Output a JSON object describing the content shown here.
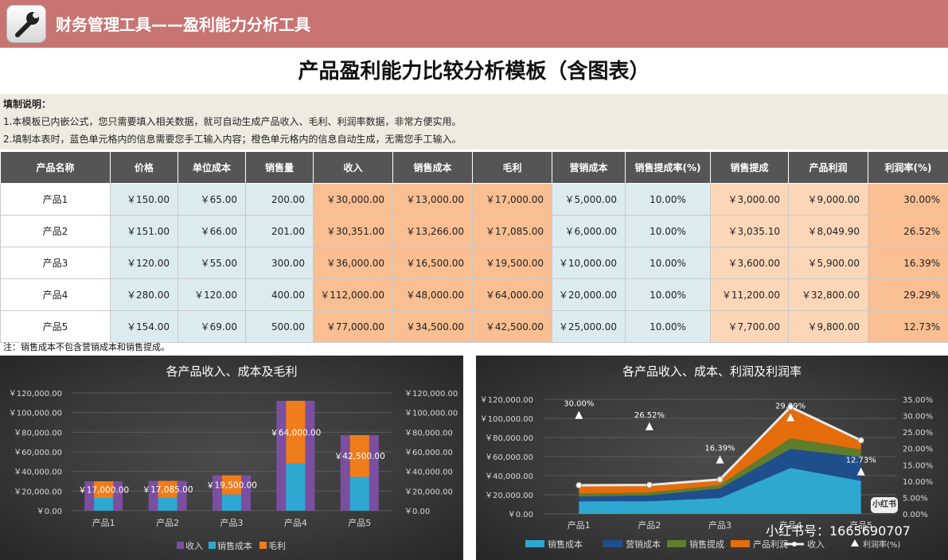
{
  "app": {
    "title": "财务管理工具——盈利能力分析工具",
    "icon": "wrench-icon"
  },
  "page_title": "产品盈利能力比较分析模板（含图表）",
  "notes": {
    "title": "填制说明：",
    "line1": "1.本模板已内嵌公式，您只需要填入相关数据，就可自动生成产品收入、毛利、利润率数据，非常方便实用。",
    "line2": "2.填制本表时，蓝色单元格内的信息需要您手工输入内容；橙色单元格内的信息自动生成，无需您手工输入。"
  },
  "table": {
    "headers": [
      "产品名称",
      "价格",
      "单位成本",
      "销售量",
      "收入",
      "销售成本",
      "毛利",
      "营销成本",
      "销售提成率(%)",
      "销售提成",
      "产品利润",
      "利润率(%)"
    ],
    "rows": [
      [
        "产品1",
        "￥150.00",
        "￥65.00",
        "200.00",
        "￥30,000.00",
        "￥13,000.00",
        "￥17,000.00",
        "￥5,000.00",
        "10.00%",
        "￥3,000.00",
        "￥9,000.00",
        "30.00%"
      ],
      [
        "产品2",
        "￥151.00",
        "￥66.00",
        "201.00",
        "￥30,351.00",
        "￥13,266.00",
        "￥17,085.00",
        "￥6,000.00",
        "10.00%",
        "￥3,035.10",
        "￥8,049.90",
        "26.52%"
      ],
      [
        "产品3",
        "￥120.00",
        "￥55.00",
        "300.00",
        "￥36,000.00",
        "￥16,500.00",
        "￥19,500.00",
        "￥10,000.00",
        "10.00%",
        "￥3,600.00",
        "￥5,900.00",
        "16.39%"
      ],
      [
        "产品4",
        "￥280.00",
        "￥120.00",
        "400.00",
        "￥112,000.00",
        "￥48,000.00",
        "￥64,000.00",
        "￥20,000.00",
        "10.00%",
        "￥11,200.00",
        "￥32,800.00",
        "29.29%"
      ],
      [
        "产品5",
        "￥154.00",
        "￥69.00",
        "500.00",
        "￥77,000.00",
        "￥34,500.00",
        "￥42,500.00",
        "￥25,000.00",
        "10.00%",
        "￥7,700.00",
        "￥9,800.00",
        "12.73%"
      ]
    ]
  },
  "footnote": "注：销售成本不包含营销成本和销售提成。",
  "watermark": {
    "text": "小红书号：1665690707",
    "badge": "小红书"
  },
  "colors": {
    "header_bar": "#c87472",
    "table_header": "#555555",
    "input_cell": "#dcebf0",
    "auto_cell": "#f9be92",
    "revenue": "#7a4f9f",
    "cost": "#2ea8d0",
    "gross": "#f07d1c",
    "sales_cost": "#2ea8d0",
    "marketing": "#1f4e8c",
    "commission": "#5f7d2c",
    "profit": "#e46c0a"
  },
  "chart_data": [
    {
      "type": "bar",
      "title": "各产品收入、成本及毛利",
      "categories": [
        "产品1",
        "产品2",
        "产品3",
        "产品4",
        "产品5"
      ],
      "series": [
        {
          "name": "收入",
          "values": [
            30000,
            30351,
            36000,
            112000,
            77000
          ]
        },
        {
          "name": "销售成本",
          "values": [
            13000,
            13266,
            16500,
            48000,
            34500
          ]
        },
        {
          "name": "毛利",
          "values": [
            17000,
            17085,
            19500,
            64000,
            42500
          ]
        }
      ],
      "data_labels": [
        "￥17,000.00",
        "￥17,085.00",
        "￥19,500.00",
        "￥64,000.00",
        "￥42,500.00"
      ],
      "ylim": [
        0,
        120000
      ],
      "y_ticks": [
        "￥0.00",
        "￥20,000.00",
        "￥40,000.00",
        "￥60,000.00",
        "￥80,000.00",
        "￥100,000.00",
        "￥120,000.00"
      ],
      "legend": "bottom"
    },
    {
      "type": "area",
      "title": "各产品收入、成本、利润及利润率",
      "categories": [
        "产品1",
        "产品2",
        "产品3",
        "产品4",
        "产品5"
      ],
      "series": [
        {
          "name": "销售成本",
          "values": [
            13000,
            13266,
            16500,
            48000,
            34500
          ]
        },
        {
          "name": "营销成本",
          "values": [
            5000,
            6000,
            10000,
            20000,
            25000
          ]
        },
        {
          "name": "销售提成",
          "values": [
            3000,
            3035.1,
            3600,
            11200,
            7700
          ]
        },
        {
          "name": "产品利润",
          "values": [
            9000,
            8049.9,
            5900,
            32800,
            9800
          ]
        },
        {
          "name": "收入",
          "values": [
            30000,
            30351,
            36000,
            112000,
            77000
          ]
        },
        {
          "name": "利润率(%)",
          "values": [
            30.0,
            26.52,
            16.39,
            29.29,
            12.73
          ]
        }
      ],
      "rate_labels": [
        "30.00%",
        "26.52%",
        "16.39%",
        "29.29%",
        "12.73%"
      ],
      "ylim": [
        0,
        120000
      ],
      "y2lim": [
        0,
        35
      ],
      "y_ticks": [
        "￥0.00",
        "￥20,000.00",
        "￥40,000.00",
        "￥60,000.00",
        "￥80,000.00",
        "￥100,000.00",
        "￥120,000.00"
      ],
      "y2_ticks": [
        "0.00%",
        "5.00%",
        "10.00%",
        "15.00%",
        "20.00%",
        "25.00%",
        "30.00%",
        "35.00%"
      ],
      "legend": "bottom"
    }
  ]
}
